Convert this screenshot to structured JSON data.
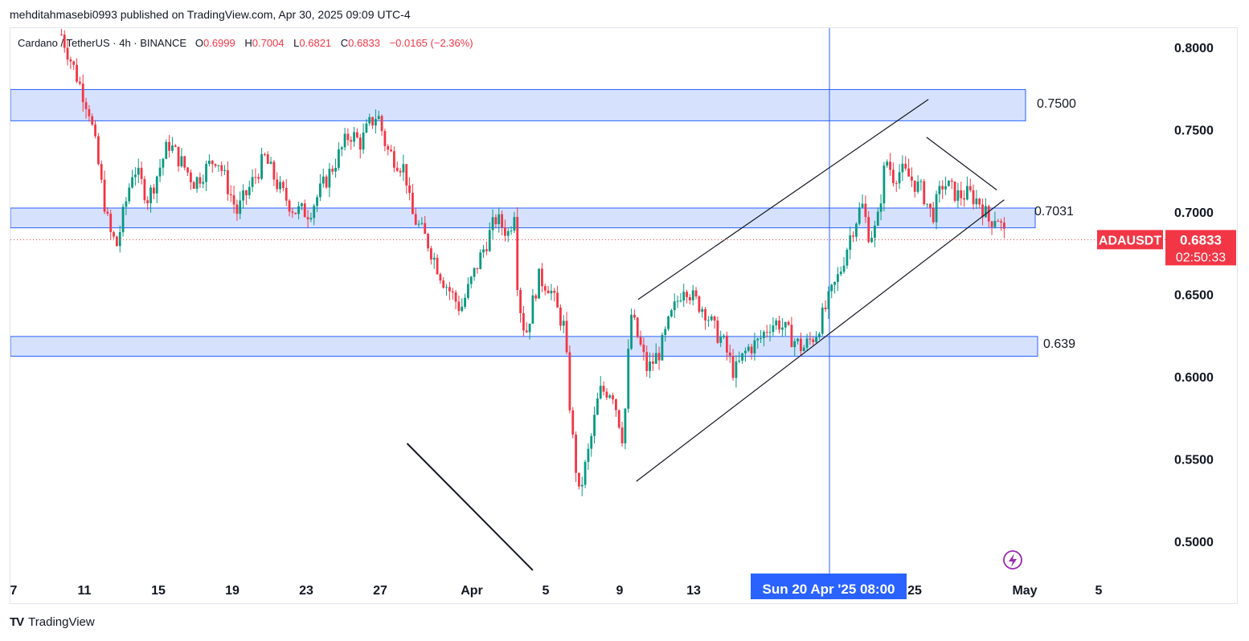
{
  "header": {
    "published": "mehditahmasebi0993 published on TradingView.com, Apr 30, 2025 09:09 UTC-4"
  },
  "legend": {
    "pair": "Cardano / TetherUS · 4h · BINANCE",
    "o_label": "O",
    "o_value": "0.6999",
    "h_label": "H",
    "h_value": "0.7004",
    "l_label": "L",
    "l_value": "0.6821",
    "c_label": "C",
    "c_value": "0.6833",
    "change": "−0.0165 (−2.36%)"
  },
  "footer": {
    "brand": "TradingView"
  },
  "colors": {
    "up": "#089981",
    "down": "#f23645",
    "zone_fill": "#d6e2fd",
    "zone_stroke": "#2962ff",
    "crosshair": "#2962ff",
    "line": "#131722"
  },
  "chart_data": {
    "type": "candlestick",
    "symbol": "ADAUSDT",
    "interval": "4h",
    "y_axis": {
      "ticks": [
        "0.8000",
        "0.7500",
        "0.7000",
        "0.6500",
        "0.6000",
        "0.5500",
        "0.5000"
      ],
      "range": [
        0.4805,
        0.8118
      ]
    },
    "x_axis": {
      "ticks": [
        "7",
        "11",
        "15",
        "19",
        "23",
        "27",
        "Apr",
        "5",
        "9",
        "13",
        "",
        "25",
        "May",
        "5"
      ],
      "range": [
        "Mar 7 2025",
        "May 7 2025"
      ]
    },
    "last_price": {
      "label": "ADAUSDT",
      "value": "0.6833",
      "countdown": "02:50:33"
    },
    "crosshair": {
      "x_label": "Sun 20 Apr '25   08:00"
    },
    "zones": [
      {
        "label": "0.7500",
        "low": 0.7555,
        "high": 0.7745
      },
      {
        "label": "0.7031",
        "low": 0.6905,
        "high": 0.7025
      },
      {
        "label": "0.639",
        "low": 0.6125,
        "high": 0.6245
      }
    ],
    "trendlines": [
      {
        "name": "channel-upper",
        "points": [
          [
            9.0,
            0.647
          ],
          [
            24.7,
            0.7685
          ]
        ]
      },
      {
        "name": "channel-lower",
        "points": [
          [
            8.9,
            0.5365
          ],
          [
            28.8,
            0.7075
          ]
        ]
      },
      {
        "name": "wedge-top",
        "points": [
          [
            24.6,
            0.7455
          ],
          [
            28.4,
            0.7135
          ]
        ]
      },
      {
        "name": "long-downtrend",
        "points": [
          [
            -3.5,
            0.5595
          ],
          [
            3.3,
            0.4825
          ]
        ]
      }
    ],
    "price_series": {
      "days_from_apr1": [
        -22.2,
        -20.7,
        -20.3,
        -20.0,
        -19.6,
        -19.2,
        -18.3,
        -17.5,
        -16.4,
        -15.0,
        -13.8,
        -12.7,
        -11.2,
        -10.4,
        -9.6,
        -8.8,
        -8.0,
        -6.6,
        -6.0,
        -5.6,
        -5.1,
        -4.6,
        -4.2,
        -3.6,
        -3.3,
        -2.4,
        -1.6,
        -0.6,
        0.4,
        1.3,
        2.0,
        2.3,
        2.5,
        2.9,
        3.6,
        4.2,
        4.6,
        5.0,
        5.4,
        5.8,
        6.4,
        6.9,
        7.6,
        8.2,
        8.6,
        9.0,
        9.5,
        10.2,
        10.7,
        11.5,
        12.0,
        12.6,
        13.1,
        13.6,
        14.2,
        14.9,
        15.5,
        16.1,
        16.6,
        17.2,
        17.9,
        18.6,
        19.4,
        19.9,
        20.5,
        21.1,
        21.5,
        21.9,
        22.4,
        22.8,
        23.2,
        23.7,
        24.0,
        24.4,
        24.9,
        25.5,
        26.3,
        26.9,
        27.5,
        28.0,
        28.4,
        28.9
      ],
      "close": [
        0.808,
        0.762,
        0.736,
        0.714,
        0.688,
        0.68,
        0.728,
        0.708,
        0.742,
        0.718,
        0.734,
        0.7,
        0.733,
        0.714,
        0.701,
        0.7,
        0.717,
        0.748,
        0.742,
        0.752,
        0.76,
        0.738,
        0.733,
        0.726,
        0.7,
        0.682,
        0.66,
        0.641,
        0.671,
        0.696,
        0.687,
        0.702,
        0.65,
        0.625,
        0.66,
        0.655,
        0.641,
        0.63,
        0.568,
        0.528,
        0.559,
        0.591,
        0.592,
        0.561,
        0.639,
        0.623,
        0.604,
        0.616,
        0.634,
        0.657,
        0.647,
        0.641,
        0.629,
        0.621,
        0.602,
        0.617,
        0.621,
        0.632,
        0.633,
        0.625,
        0.617,
        0.626,
        0.649,
        0.663,
        0.687,
        0.705,
        0.686,
        0.69,
        0.733,
        0.722,
        0.725,
        0.721,
        0.717,
        0.712,
        0.697,
        0.718,
        0.71,
        0.711,
        0.706,
        0.694,
        0.699,
        0.683
      ]
    }
  }
}
